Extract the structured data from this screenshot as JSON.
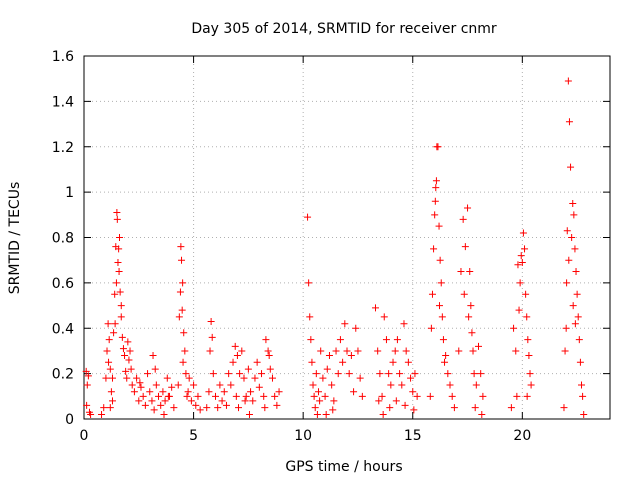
{
  "chart_data": {
    "type": "scatter",
    "title": "Day 305 of 2014, SRMTID for receiver cnmr",
    "xlabel": "GPS time / hours",
    "ylabel": "SRMTID / TECUs",
    "xlim": [
      0,
      24
    ],
    "ylim": [
      0,
      1.6
    ],
    "x_ticks": [
      0,
      5,
      10,
      15,
      20
    ],
    "x_tick_labels": [
      "0",
      "5",
      "10",
      "15",
      "20"
    ],
    "y_ticks": [
      0,
      0.2,
      0.4,
      0.6,
      0.8,
      1.0,
      1.2,
      1.4,
      1.6
    ],
    "y_tick_labels": [
      "0",
      "0.2",
      "0.4",
      "0.6",
      "0.8",
      "1",
      "1.2",
      "1.4",
      "1.6"
    ],
    "grid": true,
    "marker": "plus",
    "color": "#ff0000",
    "series": [
      {
        "name": "SRMTID",
        "points": [
          [
            0.1,
            0.21
          ],
          [
            0.15,
            0.15
          ],
          [
            0.2,
            0.19
          ],
          [
            0.25,
            0.03
          ],
          [
            0.3,
            0.02
          ],
          [
            0.12,
            0.06
          ],
          [
            0.8,
            0.02
          ],
          [
            0.9,
            0.05
          ],
          [
            1.0,
            0.18
          ],
          [
            1.05,
            0.3
          ],
          [
            1.1,
            0.42
          ],
          [
            1.15,
            0.35
          ],
          [
            1.2,
            0.22
          ],
          [
            1.25,
            0.12
          ],
          [
            1.3,
            0.08
          ],
          [
            1.35,
            0.38
          ],
          [
            1.4,
            0.55
          ],
          [
            1.45,
            0.76
          ],
          [
            1.5,
            0.91
          ],
          [
            1.52,
            0.88
          ],
          [
            1.55,
            0.69
          ],
          [
            1.6,
            0.65
          ],
          [
            1.62,
            0.8
          ],
          [
            1.65,
            0.56
          ],
          [
            1.7,
            0.45
          ],
          [
            1.75,
            0.36
          ],
          [
            1.8,
            0.31
          ],
          [
            1.85,
            0.28
          ],
          [
            1.9,
            0.21
          ],
          [
            1.95,
            0.18
          ],
          [
            2.0,
            0.34
          ],
          [
            2.05,
            0.26
          ],
          [
            2.1,
            0.3
          ],
          [
            2.15,
            0.22
          ],
          [
            2.2,
            0.15
          ],
          [
            1.3,
            0.18
          ],
          [
            1.2,
            0.05
          ],
          [
            1.7,
            0.5
          ],
          [
            1.58,
            0.75
          ],
          [
            1.48,
            0.6
          ],
          [
            1.42,
            0.42
          ],
          [
            1.12,
            0.25
          ],
          [
            2.3,
            0.12
          ],
          [
            2.4,
            0.18
          ],
          [
            2.5,
            0.08
          ],
          [
            2.6,
            0.14
          ],
          [
            2.7,
            0.1
          ],
          [
            2.8,
            0.06
          ],
          [
            2.9,
            0.2
          ],
          [
            3.0,
            0.12
          ],
          [
            3.1,
            0.08
          ],
          [
            3.2,
            0.04
          ],
          [
            3.3,
            0.15
          ],
          [
            3.4,
            0.1
          ],
          [
            3.5,
            0.06
          ],
          [
            3.6,
            0.12
          ],
          [
            3.7,
            0.08
          ],
          [
            3.8,
            0.18
          ],
          [
            3.9,
            0.1
          ],
          [
            4.0,
            0.14
          ],
          [
            4.1,
            0.05
          ],
          [
            3.15,
            0.28
          ],
          [
            3.25,
            0.22
          ],
          [
            2.55,
            0.16
          ],
          [
            3.65,
            0.02
          ],
          [
            3.85,
            0.1
          ],
          [
            4.3,
            0.15
          ],
          [
            4.35,
            0.45
          ],
          [
            4.4,
            0.56
          ],
          [
            4.42,
            0.76
          ],
          [
            4.45,
            0.7
          ],
          [
            4.5,
            0.6
          ],
          [
            4.55,
            0.38
          ],
          [
            4.6,
            0.3
          ],
          [
            4.65,
            0.2
          ],
          [
            4.7,
            0.1
          ],
          [
            4.75,
            0.12
          ],
          [
            4.8,
            0.18
          ],
          [
            4.9,
            0.08
          ],
          [
            5.0,
            0.15
          ],
          [
            5.1,
            0.06
          ],
          [
            5.2,
            0.1
          ],
          [
            5.3,
            0.04
          ],
          [
            4.48,
            0.48
          ],
          [
            4.52,
            0.25
          ],
          [
            5.6,
            0.05
          ],
          [
            5.7,
            0.12
          ],
          [
            5.75,
            0.3
          ],
          [
            5.8,
            0.43
          ],
          [
            5.85,
            0.36
          ],
          [
            5.9,
            0.2
          ],
          [
            6.0,
            0.1
          ],
          [
            6.1,
            0.05
          ],
          [
            6.2,
            0.15
          ],
          [
            6.3,
            0.08
          ],
          [
            6.4,
            0.12
          ],
          [
            6.5,
            0.06
          ],
          [
            6.6,
            0.2
          ],
          [
            6.7,
            0.15
          ],
          [
            6.8,
            0.25
          ],
          [
            6.9,
            0.32
          ],
          [
            7.0,
            0.28
          ],
          [
            7.1,
            0.2
          ],
          [
            7.2,
            0.3
          ],
          [
            7.3,
            0.18
          ],
          [
            7.4,
            0.1
          ],
          [
            7.5,
            0.22
          ],
          [
            7.6,
            0.12
          ],
          [
            7.7,
            0.08
          ],
          [
            7.8,
            0.18
          ],
          [
            7.9,
            0.25
          ],
          [
            8.0,
            0.14
          ],
          [
            8.1,
            0.2
          ],
          [
            8.2,
            0.1
          ],
          [
            8.3,
            0.35
          ],
          [
            8.4,
            0.3
          ],
          [
            8.5,
            0.22
          ],
          [
            8.6,
            0.18
          ],
          [
            8.7,
            0.1
          ],
          [
            8.8,
            0.06
          ],
          [
            8.9,
            0.12
          ],
          [
            6.95,
            0.1
          ],
          [
            7.05,
            0.05
          ],
          [
            7.35,
            0.08
          ],
          [
            7.55,
            0.02
          ],
          [
            8.25,
            0.05
          ],
          [
            8.45,
            0.28
          ],
          [
            10.2,
            0.89
          ],
          [
            10.25,
            0.6
          ],
          [
            10.3,
            0.45
          ],
          [
            10.35,
            0.35
          ],
          [
            10.4,
            0.25
          ],
          [
            10.45,
            0.15
          ],
          [
            10.5,
            0.1
          ],
          [
            10.55,
            0.05
          ],
          [
            10.6,
            0.2
          ],
          [
            10.7,
            0.12
          ],
          [
            10.8,
            0.3
          ],
          [
            10.9,
            0.18
          ],
          [
            11.0,
            0.1
          ],
          [
            11.1,
            0.22
          ],
          [
            11.2,
            0.28
          ],
          [
            11.3,
            0.15
          ],
          [
            11.4,
            0.08
          ],
          [
            11.5,
            0.3
          ],
          [
            11.6,
            0.2
          ],
          [
            11.7,
            0.35
          ],
          [
            11.8,
            0.25
          ],
          [
            11.9,
            0.42
          ],
          [
            12.0,
            0.3
          ],
          [
            12.1,
            0.2
          ],
          [
            12.2,
            0.28
          ],
          [
            12.3,
            0.12
          ],
          [
            12.4,
            0.4
          ],
          [
            12.5,
            0.3
          ],
          [
            12.6,
            0.18
          ],
          [
            12.7,
            0.1
          ],
          [
            10.65,
            0.02
          ],
          [
            10.75,
            0.08
          ],
          [
            11.05,
            0.02
          ],
          [
            11.35,
            0.04
          ],
          [
            13.3,
            0.49
          ],
          [
            13.4,
            0.3
          ],
          [
            13.5,
            0.2
          ],
          [
            13.6,
            0.1
          ],
          [
            13.7,
            0.45
          ],
          [
            13.8,
            0.35
          ],
          [
            13.9,
            0.2
          ],
          [
            14.0,
            0.15
          ],
          [
            14.1,
            0.25
          ],
          [
            14.2,
            0.3
          ],
          [
            14.3,
            0.35
          ],
          [
            14.4,
            0.2
          ],
          [
            14.5,
            0.15
          ],
          [
            14.6,
            0.42
          ],
          [
            14.7,
            0.3
          ],
          [
            14.8,
            0.25
          ],
          [
            14.9,
            0.18
          ],
          [
            15.0,
            0.12
          ],
          [
            15.1,
            0.2
          ],
          [
            15.2,
            0.1
          ],
          [
            13.45,
            0.08
          ],
          [
            13.65,
            0.02
          ],
          [
            13.95,
            0.05
          ],
          [
            14.25,
            0.08
          ],
          [
            14.65,
            0.06
          ],
          [
            15.05,
            0.04
          ],
          [
            15.8,
            0.1
          ],
          [
            15.85,
            0.4
          ],
          [
            15.9,
            0.55
          ],
          [
            15.95,
            0.75
          ],
          [
            16.0,
            0.9
          ],
          [
            16.05,
            1.02
          ],
          [
            16.08,
            1.05
          ],
          [
            16.1,
            1.2
          ],
          [
            16.15,
            1.2
          ],
          [
            16.2,
            0.85
          ],
          [
            16.25,
            0.7
          ],
          [
            16.3,
            0.6
          ],
          [
            16.35,
            0.45
          ],
          [
            16.4,
            0.35
          ],
          [
            16.5,
            0.28
          ],
          [
            16.6,
            0.2
          ],
          [
            16.7,
            0.15
          ],
          [
            16.8,
            0.1
          ],
          [
            16.9,
            0.05
          ],
          [
            16.03,
            0.96
          ],
          [
            16.22,
            0.5
          ],
          [
            16.45,
            0.25
          ],
          [
            17.1,
            0.3
          ],
          [
            17.2,
            0.65
          ],
          [
            17.3,
            0.88
          ],
          [
            17.4,
            0.76
          ],
          [
            17.5,
            0.93
          ],
          [
            17.6,
            0.65
          ],
          [
            17.65,
            0.5
          ],
          [
            17.7,
            0.38
          ],
          [
            17.75,
            0.3
          ],
          [
            17.8,
            0.2
          ],
          [
            17.9,
            0.15
          ],
          [
            18.0,
            0.32
          ],
          [
            18.1,
            0.2
          ],
          [
            18.2,
            0.1
          ],
          [
            17.35,
            0.55
          ],
          [
            17.55,
            0.45
          ],
          [
            17.85,
            0.05
          ],
          [
            18.15,
            0.02
          ],
          [
            19.5,
            0.05
          ],
          [
            19.6,
            0.4
          ],
          [
            19.7,
            0.3
          ],
          [
            19.8,
            0.68
          ],
          [
            19.9,
            0.6
          ],
          [
            19.95,
            0.72
          ],
          [
            20.0,
            0.69
          ],
          [
            20.05,
            0.82
          ],
          [
            20.1,
            0.75
          ],
          [
            20.15,
            0.55
          ],
          [
            20.2,
            0.45
          ],
          [
            20.25,
            0.35
          ],
          [
            20.3,
            0.28
          ],
          [
            20.35,
            0.2
          ],
          [
            20.4,
            0.15
          ],
          [
            19.75,
            0.1
          ],
          [
            19.85,
            0.48
          ],
          [
            20.22,
            0.1
          ],
          [
            21.9,
            0.05
          ],
          [
            21.95,
            0.3
          ],
          [
            22.0,
            0.4
          ],
          [
            22.05,
            0.83
          ],
          [
            22.1,
            1.49
          ],
          [
            22.15,
            1.31
          ],
          [
            22.2,
            1.11
          ],
          [
            22.25,
            0.8
          ],
          [
            22.3,
            0.95
          ],
          [
            22.35,
            0.9
          ],
          [
            22.4,
            0.75
          ],
          [
            22.45,
            0.65
          ],
          [
            22.5,
            0.55
          ],
          [
            22.55,
            0.45
          ],
          [
            22.6,
            0.35
          ],
          [
            22.65,
            0.25
          ],
          [
            22.7,
            0.15
          ],
          [
            22.75,
            0.1
          ],
          [
            22.8,
            0.02
          ],
          [
            22.02,
            0.6
          ],
          [
            22.12,
            0.7
          ],
          [
            22.32,
            0.5
          ],
          [
            22.42,
            0.42
          ]
        ]
      }
    ]
  }
}
